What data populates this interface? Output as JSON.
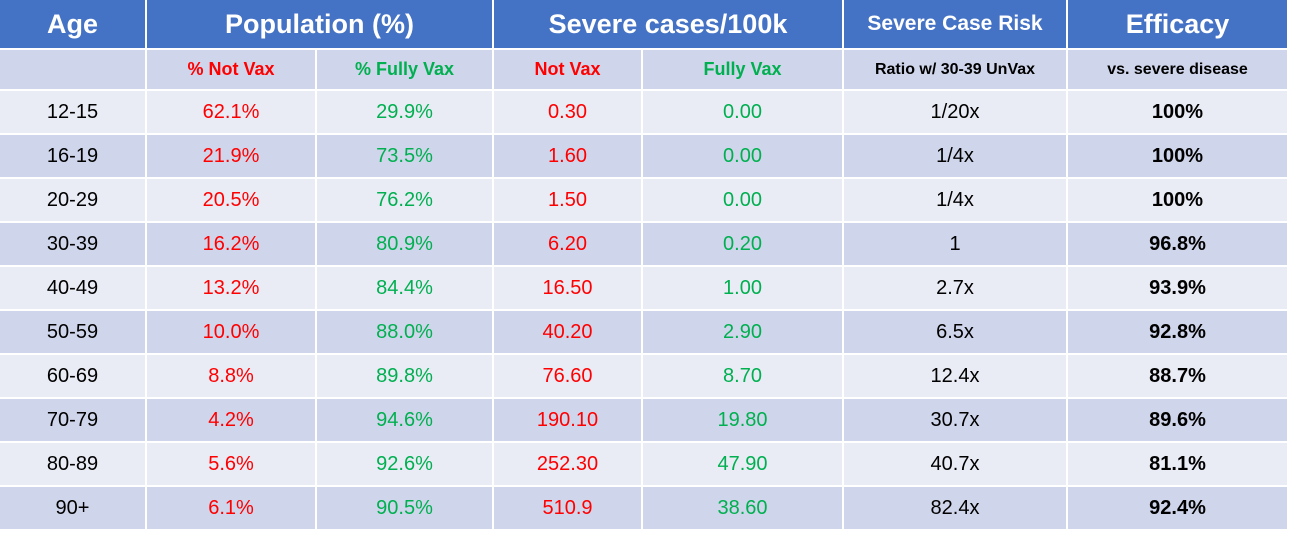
{
  "header": {
    "top": [
      "Age",
      "Population (%)",
      "Severe cases/100k",
      "Severe Case Risk",
      "Efficacy"
    ],
    "sub": [
      "% Not Vax",
      "% Fully Vax",
      "Not Vax",
      "Fully Vax",
      "Ratio w/ 30-39 UnVax",
      "vs. severe disease"
    ]
  },
  "table": {
    "rows": [
      [
        "12-15",
        "62.1%",
        "29.9%",
        "0.30",
        "0.00",
        "1/20x",
        "100%"
      ],
      [
        "16-19",
        "21.9%",
        "73.5%",
        "1.60",
        "0.00",
        "1/4x",
        "100%"
      ],
      [
        "20-29",
        "20.5%",
        "76.2%",
        "1.50",
        "0.00",
        "1/4x",
        "100%"
      ],
      [
        "30-39",
        "16.2%",
        "80.9%",
        "6.20",
        "0.20",
        "1",
        "96.8%"
      ],
      [
        "40-49",
        "13.2%",
        "84.4%",
        "16.50",
        "1.00",
        "2.7x",
        "93.9%"
      ],
      [
        "50-59",
        "10.0%",
        "88.0%",
        "40.20",
        "2.90",
        "6.5x",
        "92.8%"
      ],
      [
        "60-69",
        "8.8%",
        "89.8%",
        "76.60",
        "8.70",
        "12.4x",
        "88.7%"
      ],
      [
        "70-79",
        "4.2%",
        "94.6%",
        "190.10",
        "19.80",
        "30.7x",
        "89.6%"
      ],
      [
        "80-89",
        "5.6%",
        "92.6%",
        "252.30",
        "47.90",
        "40.7x",
        "81.1%"
      ],
      [
        "90+",
        "6.1%",
        "90.5%",
        "510.9",
        "38.60",
        "82.4x",
        "92.4%"
      ]
    ]
  }
}
